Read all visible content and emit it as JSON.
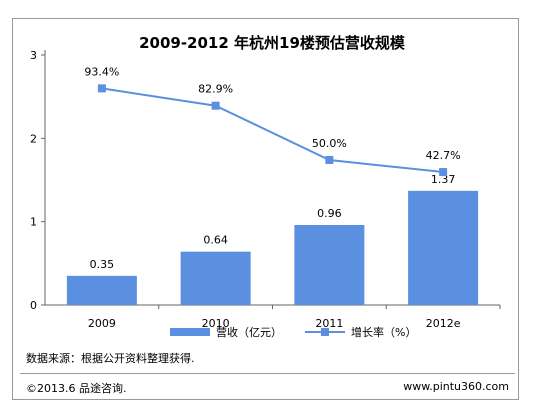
{
  "chart_data": {
    "type": "bar",
    "title": "2009-2012 年杭州19楼预估营收规模",
    "categories": [
      "2009",
      "2010",
      "2011",
      "2012e"
    ],
    "series": [
      {
        "name": "营收（亿元）",
        "type": "bar",
        "values": [
          0.35,
          0.64,
          0.96,
          1.37
        ],
        "labels": [
          "0.35",
          "0.64",
          "0.96",
          "1.37"
        ]
      },
      {
        "name": "增长率（%）",
        "type": "line",
        "values": [
          93.4,
          82.9,
          50.0,
          42.7
        ],
        "labels": [
          "93.4%",
          "82.9%",
          "50.0%",
          "42.7%"
        ]
      }
    ],
    "ylim": [
      0,
      3
    ],
    "yticks": [
      "0",
      "1",
      "2",
      "3"
    ],
    "legend_position": "bottom",
    "colors": {
      "bar": "#5b8fe0",
      "line": "#5b8fe0"
    }
  },
  "footer": {
    "source": "数据来源：根据公开资料整理获得.",
    "copyright": "©2013.6 品途咨询.",
    "site": "www.pintu360.com"
  }
}
